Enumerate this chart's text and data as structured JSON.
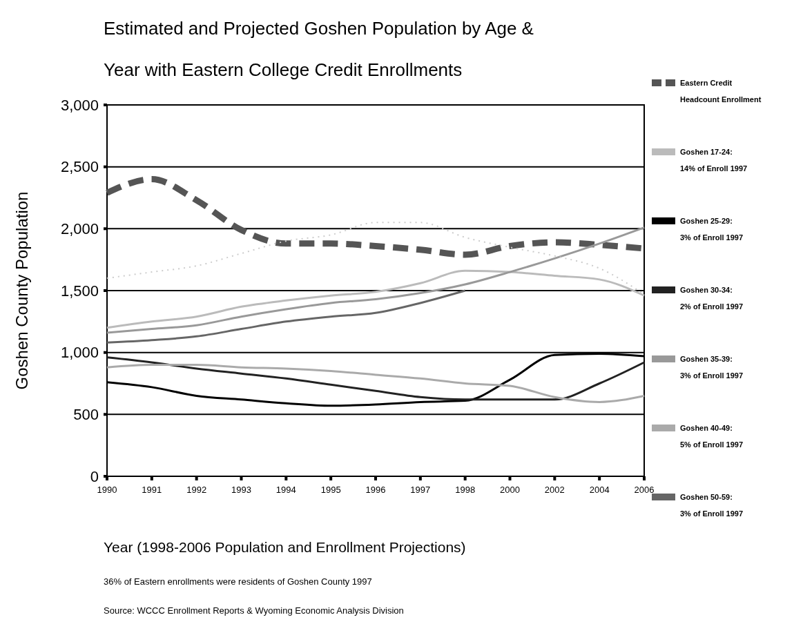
{
  "chart_data": {
    "type": "line",
    "title": "Estimated and Projected Goshen Population by Age & Year with Eastern College Credit Enrollments",
    "xlabel": "Year (1998-2006 Population and Enrollment Projections)",
    "ylabel": "Goshen County Population",
    "categories": [
      "1990",
      "1991",
      "1992",
      "1993",
      "1994",
      "1995",
      "1996",
      "1997",
      "1998",
      "2000",
      "2002",
      "2004",
      "2006"
    ],
    "ylim": [
      0,
      3000
    ],
    "yticks": [
      0,
      500,
      {
        "value": 1000,
        "label": "1,000"
      },
      {
        "value": 1500,
        "label": "1,500"
      },
      {
        "value": 2000,
        "label": "2,000"
      },
      {
        "value": 2500,
        "label": "2,500"
      },
      {
        "value": 3000,
        "label": "3,000"
      }
    ],
    "grid": "y",
    "legend": "right",
    "series": [
      {
        "name": "Eastern Credit Headcount Enrollment",
        "color": "#555555",
        "line_style": "dashed",
        "values": [
          2290,
          2400,
          2230,
          1990,
          1880,
          1880,
          1860,
          1830,
          1790,
          1860,
          1890,
          1870,
          1840
        ]
      },
      {
        "name": "Goshen 17-24: 14% of Enroll 1997",
        "color": "#bbbbbb",
        "values": [
          1200,
          1250,
          1290,
          1370,
          1420,
          1460,
          1490,
          1560,
          1660,
          1650,
          1620,
          1590,
          1460
        ]
      },
      {
        "name": "Goshen 25-29: 3% of Enroll 1997",
        "color": "#000000",
        "values": [
          760,
          720,
          650,
          620,
          590,
          570,
          580,
          600,
          610,
          780,
          980,
          990,
          970
        ]
      },
      {
        "name": "Goshen 30-34: 2% of Enroll 1997",
        "color": "#222222",
        "values": [
          960,
          920,
          870,
          830,
          790,
          740,
          690,
          640,
          620,
          620,
          620,
          750,
          920
        ]
      },
      {
        "name": "Goshen 35-39: 3% of Enroll 1997",
        "color": "#999999",
        "values": [
          1160,
          1190,
          1220,
          1290,
          1350,
          1400,
          1430,
          1480,
          1550,
          1650,
          1760,
          1880,
          2010
        ]
      },
      {
        "name": "Goshen 40-49: 5% of Enroll 1997",
        "color": "#aaaaaa",
        "values": [
          880,
          900,
          900,
          880,
          870,
          850,
          820,
          790,
          750,
          730,
          640,
          600,
          650
        ]
      },
      {
        "name": "Goshen 50-59: 3% of Enroll 1997",
        "color": "#666666",
        "values": [
          1080,
          1100,
          1130,
          1190,
          1250,
          1290,
          1320,
          1400,
          1500,
          null,
          null,
          null,
          null
        ]
      },
      {
        "color": "#cccccc",
        "line_style": "dotted",
        "values": [
          1600,
          1650,
          1700,
          1800,
          1900,
          1950,
          2050,
          2050,
          1930,
          1850,
          1780,
          1680,
          1470
        ]
      }
    ],
    "annotations": [
      "36% of Eastern enrollments were residents of Goshen County 1997",
      "Source: WCCC Enrollment Reports & Wyoming Economic Analysis Division"
    ]
  }
}
